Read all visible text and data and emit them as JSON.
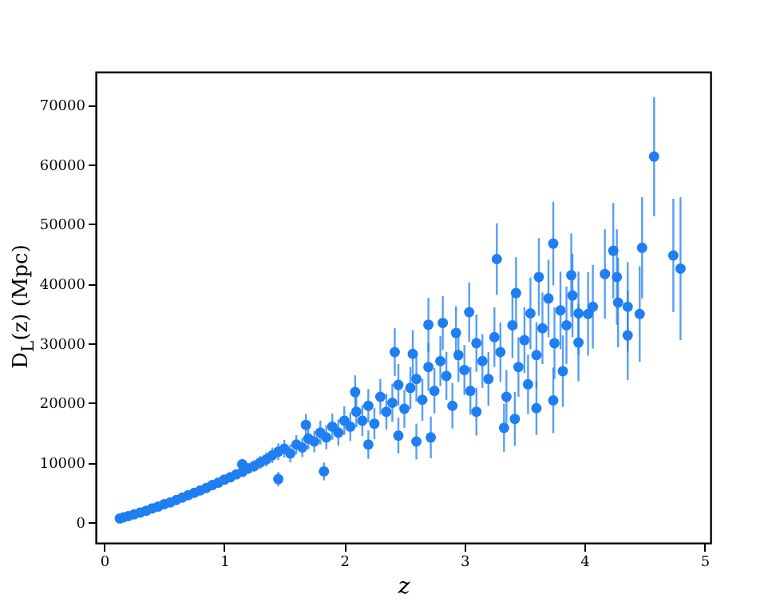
{
  "chart_data": {
    "type": "scatter",
    "xlabel": "z",
    "ylabel": "D$_{L}$(z) (Mpc)",
    "x": [
      0.13,
      0.16,
      0.2,
      0.25,
      0.3,
      0.35,
      0.4,
      0.45,
      0.5,
      0.55,
      0.6,
      0.65,
      0.7,
      0.75,
      0.8,
      0.85,
      0.9,
      0.95,
      1.0,
      1.05,
      1.1,
      1.15,
      1.15,
      1.2,
      1.25,
      1.3,
      1.35,
      1.4,
      1.45,
      1.45,
      1.5,
      1.55,
      1.6,
      1.65,
      1.68,
      1.7,
      1.75,
      1.8,
      1.83,
      1.85,
      1.9,
      1.95,
      2.0,
      2.05,
      2.09,
      2.1,
      2.15,
      2.2,
      2.2,
      2.25,
      2.3,
      2.35,
      2.4,
      2.42,
      2.45,
      2.45,
      2.5,
      2.55,
      2.57,
      2.6,
      2.6,
      2.65,
      2.7,
      2.7,
      2.72,
      2.75,
      2.8,
      2.82,
      2.85,
      2.9,
      2.93,
      2.95,
      3.0,
      3.04,
      3.05,
      3.1,
      3.1,
      3.15,
      3.2,
      3.25,
      3.27,
      3.3,
      3.33,
      3.35,
      3.4,
      3.42,
      3.43,
      3.45,
      3.5,
      3.53,
      3.55,
      3.6,
      3.6,
      3.62,
      3.65,
      3.7,
      3.74,
      3.74,
      3.75,
      3.8,
      3.82,
      3.85,
      3.89,
      3.9,
      3.95,
      3.95,
      4.03,
      4.07,
      4.17,
      4.24,
      4.27,
      4.28,
      4.36,
      4.36,
      4.46,
      4.48,
      4.58,
      4.74,
      4.8
    ],
    "values": [
      600,
      800,
      1000,
      1300,
      1600,
      1900,
      2300,
      2600,
      3000,
      3300,
      3700,
      4100,
      4500,
      4900,
      5300,
      5700,
      6200,
      6600,
      7100,
      7500,
      8000,
      8400,
      9700,
      9000,
      9400,
      10000,
      10500,
      11200,
      11800,
      7200,
      12300,
      11500,
      13000,
      12500,
      16300,
      14000,
      13500,
      15000,
      8500,
      14200,
      16000,
      15000,
      17000,
      16000,
      21800,
      18500,
      17000,
      19500,
      13000,
      16500,
      21000,
      18500,
      20000,
      28500,
      23000,
      14500,
      19000,
      22500,
      28200,
      24000,
      13500,
      20500,
      26000,
      33100,
      14200,
      22000,
      27000,
      33400,
      24500,
      19500,
      31700,
      28000,
      25500,
      35200,
      22000,
      30000,
      18500,
      27000,
      24000,
      31000,
      44100,
      28500,
      15800,
      21000,
      33000,
      17300,
      38400,
      26000,
      30500,
      23100,
      35000,
      28000,
      19100,
      41100,
      32500,
      37500,
      46700,
      20400,
      30000,
      35500,
      25300,
      33000,
      41400,
      38000,
      35000,
      30100,
      34900,
      36100,
      41600,
      45500,
      41100,
      36800,
      36100,
      31300,
      34900,
      46000,
      61300,
      44700,
      42500
    ],
    "errors": [
      null,
      null,
      null,
      null,
      null,
      null,
      null,
      null,
      200,
      220,
      250,
      280,
      300,
      350,
      400,
      450,
      500,
      550,
      600,
      650,
      700,
      800,
      900,
      900,
      1000,
      1100,
      1200,
      1300,
      1400,
      1200,
      1500,
      1500,
      1600,
      1600,
      1800,
      1800,
      1800,
      2000,
      1500,
      2000,
      2200,
      2200,
      2400,
      2400,
      2800,
      2600,
      2600,
      2800,
      2400,
      2600,
      3000,
      3000,
      3200,
      4000,
      3500,
      3000,
      3200,
      3500,
      4000,
      3800,
      3000,
      3500,
      4000,
      4500,
      3500,
      3800,
      4200,
      4500,
      4000,
      3800,
      4500,
      4500,
      4200,
      5000,
      4000,
      4800,
      4000,
      4500,
      4500,
      5000,
      6000,
      5000,
      4000,
      4500,
      5500,
      4500,
      6000,
      5000,
      5500,
      5000,
      6000,
      5500,
      4500,
      6500,
      6000,
      6500,
      7000,
      5500,
      6000,
      6500,
      6000,
      6500,
      7000,
      7000,
      7000,
      6500,
      7000,
      7000,
      7500,
      8000,
      8000,
      7500,
      7500,
      7500,
      8000,
      8500,
      10000,
      9500,
      12000
    ],
    "color": "#1f7ef2",
    "marker": "circle",
    "grid": false,
    "xlim": [
      -0.07,
      5.05
    ],
    "ylim": [
      -3500,
      75500
    ],
    "xticks": [
      0,
      1,
      2,
      3,
      4,
      5
    ],
    "yticks": [
      0,
      10000,
      20000,
      30000,
      40000,
      50000,
      60000,
      70000
    ]
  }
}
